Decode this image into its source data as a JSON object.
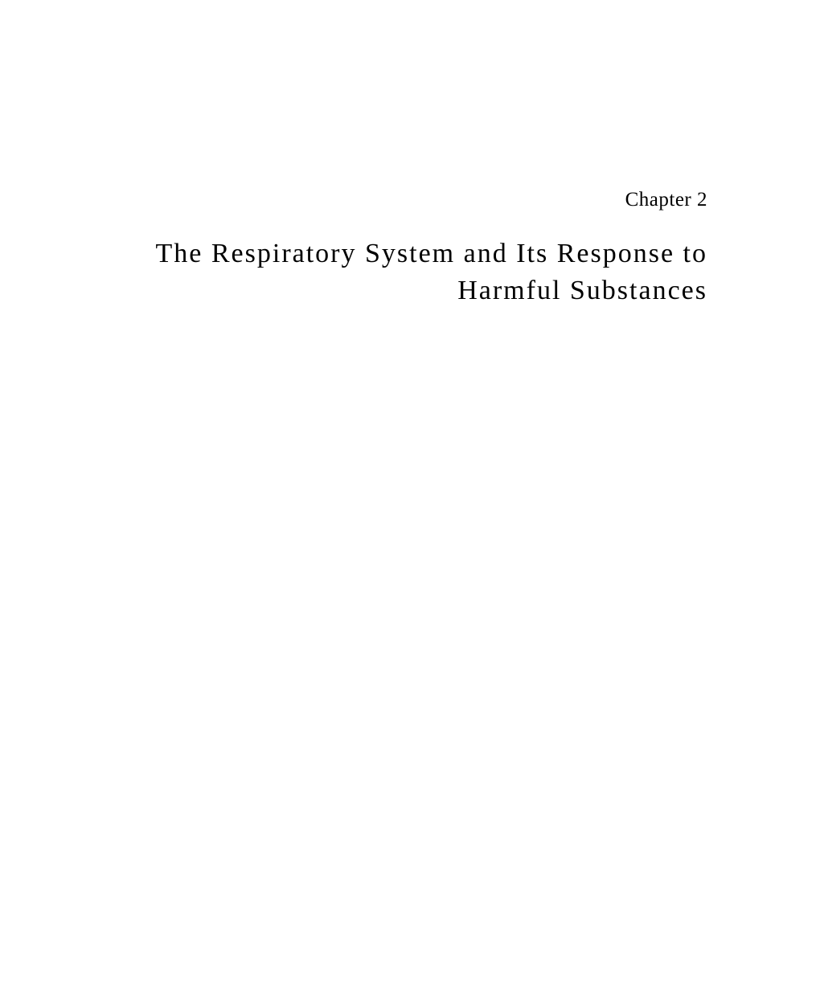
{
  "chapter": {
    "label": "Chapter 2",
    "title_line1": "The Respiratory System and Its Response to",
    "title_line2": "Harmful Substances"
  }
}
